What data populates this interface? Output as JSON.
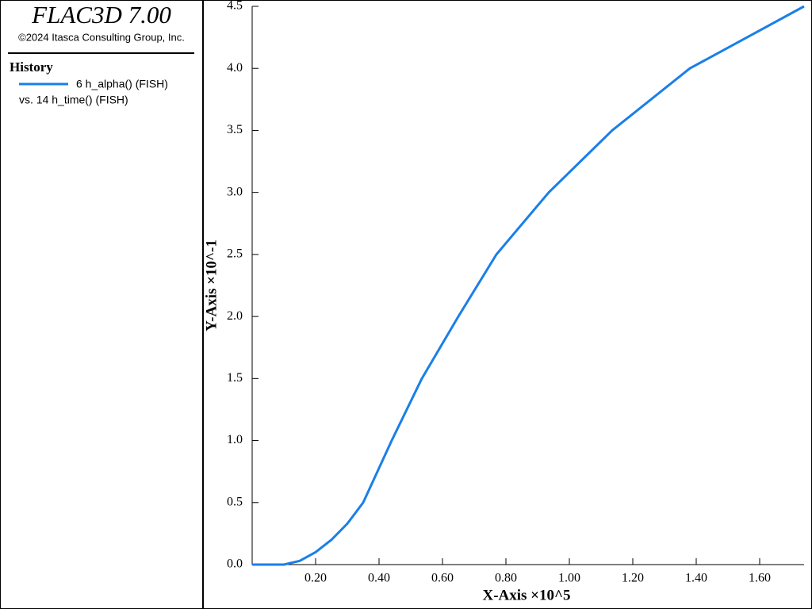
{
  "chart_data": {
    "type": "line",
    "title": "FLAC3D 7.00",
    "subtitle": "©2024 Itasca Consulting Group, Inc.",
    "legend_title": "History",
    "x_series_name": "vs. 14 h_time() (FISH)",
    "x_label": "X-Axis ×10^5",
    "y_label": "Y-Axis ×10^-1",
    "x": [
      0,
      0.05,
      0.1,
      0.15,
      0.2,
      0.25,
      0.3,
      0.35,
      0.44,
      0.535,
      0.65,
      0.77,
      0.935,
      1.135,
      1.38,
      1.74
    ],
    "series": [
      {
        "name": "6 h_alpha() (FISH)",
        "color": "#1a7fe8",
        "values": [
          0,
          0,
          0,
          0.03,
          0.1,
          0.2,
          0.33,
          0.5,
          1.0,
          1.5,
          2.0,
          2.5,
          3.0,
          3.5,
          4.0,
          4.5
        ]
      }
    ],
    "xlim": [
      0,
      1.74
    ],
    "ylim": [
      0,
      4.5
    ],
    "xticks": [
      {
        "value": 0.2,
        "label": "0.20"
      },
      {
        "value": 0.4,
        "label": "0.40"
      },
      {
        "value": 0.6,
        "label": "0.60"
      },
      {
        "value": 0.8,
        "label": "0.80"
      },
      {
        "value": 1.0,
        "label": "1.00"
      },
      {
        "value": 1.2,
        "label": "1.20"
      },
      {
        "value": 1.4,
        "label": "1.40"
      },
      {
        "value": 1.6,
        "label": "1.60"
      }
    ],
    "yticks": [
      {
        "value": 0,
        "label": "0.0"
      },
      0.5,
      {
        "value": 1,
        "label": "1.0"
      },
      1.5,
      {
        "value": 2,
        "label": "2.0"
      },
      2.5,
      {
        "value": 3,
        "label": "3.0"
      },
      3.5,
      {
        "value": 4,
        "label": "4.0"
      },
      4.5
    ]
  }
}
